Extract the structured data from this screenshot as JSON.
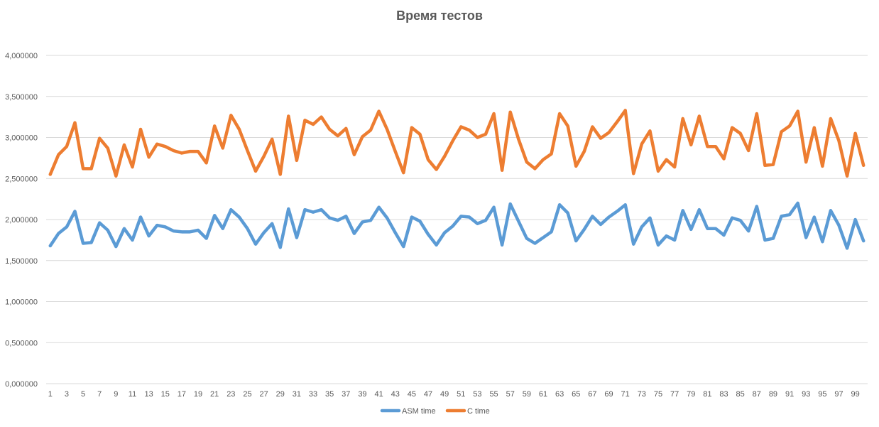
{
  "chart_data": {
    "type": "line",
    "title": "Время тестов",
    "xlabel": "",
    "ylabel": "",
    "ylim": [
      0,
      4
    ],
    "yticks": [
      "0,000000",
      "0,500000",
      "1,000000",
      "1,500000",
      "2,000000",
      "2,500000",
      "3,000000",
      "3,500000",
      "4,000000"
    ],
    "x_tick_labels": [
      "1",
      "3",
      "5",
      "7",
      "9",
      "11",
      "13",
      "15",
      "17",
      "19",
      "21",
      "23",
      "25",
      "27",
      "29",
      "31",
      "33",
      "35",
      "37",
      "39",
      "41",
      "43",
      "45",
      "47",
      "49",
      "51",
      "53",
      "55",
      "57",
      "59",
      "61",
      "63",
      "65",
      "67",
      "69",
      "71",
      "73",
      "75",
      "77",
      "79",
      "81",
      "83",
      "85",
      "87",
      "89",
      "91",
      "93",
      "95",
      "97",
      "99"
    ],
    "grid": true,
    "legend_position": "bottom",
    "series": [
      {
        "name": "ASM time",
        "color": "#5b9bd5",
        "values": [
          1.68,
          1.83,
          1.91,
          2.1,
          1.71,
          1.72,
          1.96,
          1.87,
          1.67,
          1.89,
          1.75,
          2.03,
          1.8,
          1.93,
          1.91,
          1.86,
          1.85,
          1.85,
          1.87,
          1.77,
          2.05,
          1.89,
          2.12,
          2.03,
          1.89,
          1.7,
          1.84,
          1.95,
          1.66,
          2.13,
          1.78,
          2.12,
          2.09,
          2.12,
          2.02,
          1.99,
          2.04,
          1.83,
          1.97,
          1.99,
          2.15,
          2.02,
          1.84,
          1.67,
          2.03,
          1.98,
          1.82,
          1.69,
          1.84,
          1.92,
          2.04,
          2.03,
          1.95,
          1.99,
          2.15,
          1.69,
          2.19,
          1.98,
          1.77,
          1.71,
          1.78,
          1.85,
          2.18,
          2.08,
          1.74,
          1.88,
          2.04,
          1.94,
          2.03,
          2.1,
          2.18,
          1.7,
          1.91,
          2.02,
          1.69,
          1.8,
          1.75,
          2.11,
          1.88,
          2.12,
          1.89,
          1.89,
          1.81,
          2.02,
          1.99,
          1.86,
          2.16,
          1.75,
          1.77,
          2.04,
          2.06,
          2.2,
          1.78,
          2.03,
          1.73,
          2.11,
          1.93,
          1.65,
          2.0,
          1.74
        ]
      },
      {
        "name": "C time",
        "color": "#ed7d31",
        "values": [
          2.55,
          2.79,
          2.89,
          3.18,
          2.62,
          2.62,
          2.99,
          2.87,
          2.53,
          2.91,
          2.64,
          3.1,
          2.76,
          2.92,
          2.89,
          2.84,
          2.81,
          2.83,
          2.83,
          2.69,
          3.14,
          2.87,
          3.27,
          3.1,
          2.84,
          2.59,
          2.77,
          2.98,
          2.55,
          3.26,
          2.72,
          3.21,
          3.16,
          3.25,
          3.1,
          3.02,
          3.11,
          2.79,
          3.01,
          3.09,
          3.32,
          3.1,
          2.83,
          2.57,
          3.12,
          3.04,
          2.73,
          2.61,
          2.77,
          2.96,
          3.13,
          3.09,
          3.0,
          3.04,
          3.29,
          2.6,
          3.31,
          2.98,
          2.7,
          2.62,
          2.73,
          2.8,
          3.29,
          3.14,
          2.65,
          2.83,
          3.13,
          2.99,
          3.06,
          3.19,
          3.33,
          2.56,
          2.92,
          3.08,
          2.59,
          2.73,
          2.64,
          3.23,
          2.91,
          3.26,
          2.89,
          2.89,
          2.74,
          3.12,
          3.05,
          2.84,
          3.29,
          2.66,
          2.67,
          3.07,
          3.14,
          3.32,
          2.7,
          3.12,
          2.65,
          3.23,
          2.96,
          2.53,
          3.05,
          2.66
        ]
      }
    ]
  }
}
